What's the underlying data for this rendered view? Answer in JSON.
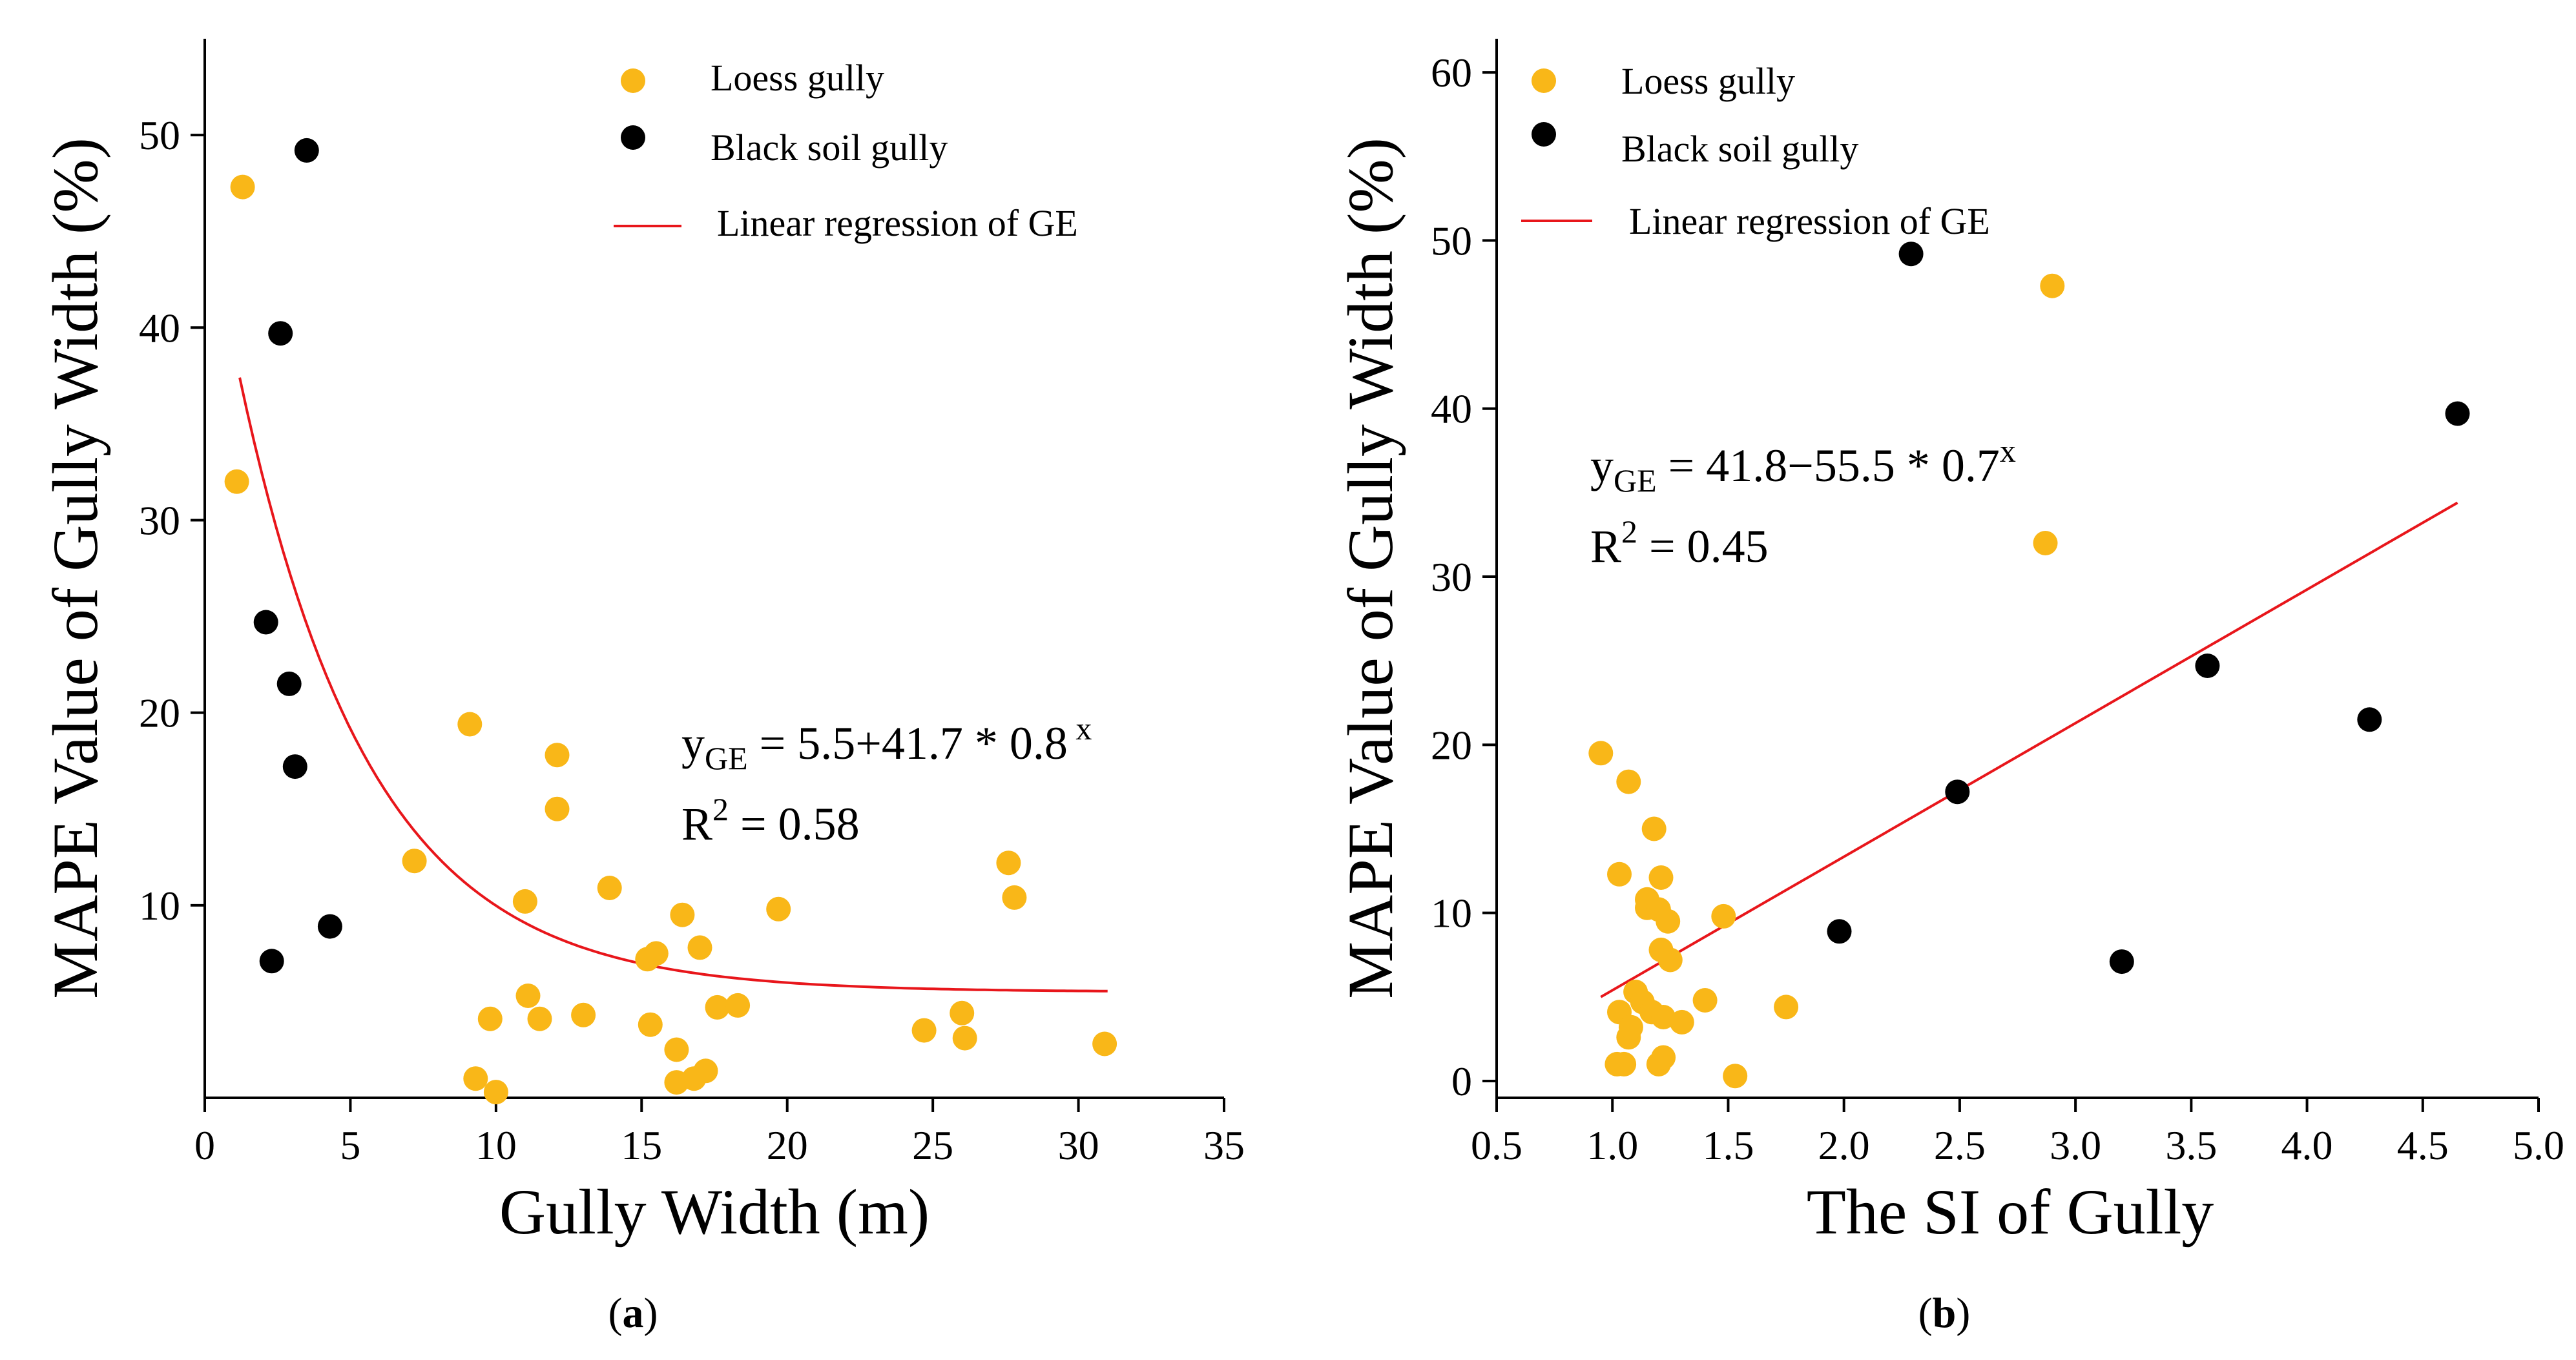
{
  "colors": {
    "loess": "#F9B718",
    "black_soil": "#000000",
    "regression": "#E8161B",
    "axis": "#000000"
  },
  "chart_data": [
    {
      "type": "scatter",
      "panel_label": "(a)",
      "panel_letter": "a",
      "xlabel": "Gully Width (m)",
      "ylabel": "MAPE Value of Gully Width (%)",
      "xlim": [
        0,
        35
      ],
      "ylim": [
        0,
        55
      ],
      "xticks": [
        0,
        5,
        10,
        15,
        20,
        25,
        30,
        35
      ],
      "yticks": [
        10,
        20,
        30,
        40,
        50
      ],
      "legend": [
        "Loess gully",
        "Black soil gully",
        "Linear regression of GE"
      ],
      "equation": {
        "lhs": "y",
        "sub": "GE",
        "rhs": " = 5.5+41.7 * 0.8",
        "sup": " x"
      },
      "r2": {
        "base": "R",
        "sup": "2",
        "value": " = 0.58"
      },
      "fit": {
        "form": "exponential",
        "a": 5.5,
        "b": 41.7,
        "c": 0.8,
        "x_range": [
          1.2,
          31
        ]
      },
      "series": [
        {
          "name": "Loess gully",
          "points": [
            [
              1.1,
              32.0
            ],
            [
              1.3,
              47.3
            ],
            [
              7.2,
              12.3
            ],
            [
              9.1,
              19.4
            ],
            [
              9.3,
              1.0
            ],
            [
              9.8,
              4.1
            ],
            [
              10.0,
              0.3
            ],
            [
              11.0,
              10.2
            ],
            [
              11.1,
              5.3
            ],
            [
              11.5,
              4.1
            ],
            [
              12.1,
              17.8
            ],
            [
              12.1,
              15.0
            ],
            [
              13.0,
              4.3
            ],
            [
              13.9,
              10.9
            ],
            [
              15.2,
              7.2
            ],
            [
              15.3,
              3.8
            ],
            [
              15.5,
              7.5
            ],
            [
              16.2,
              2.5
            ],
            [
              16.2,
              0.8
            ],
            [
              16.4,
              9.5
            ],
            [
              16.8,
              1.0
            ],
            [
              17.0,
              7.8
            ],
            [
              17.2,
              1.4
            ],
            [
              17.6,
              4.7
            ],
            [
              18.3,
              4.8
            ],
            [
              19.7,
              9.8
            ],
            [
              24.7,
              3.5
            ],
            [
              26.0,
              4.4
            ],
            [
              26.1,
              3.1
            ],
            [
              27.6,
              12.2
            ],
            [
              27.8,
              10.4
            ],
            [
              30.9,
              2.8
            ]
          ]
        },
        {
          "name": "Black soil gully",
          "points": [
            [
              2.1,
              24.7
            ],
            [
              2.3,
              7.1
            ],
            [
              2.6,
              39.7
            ],
            [
              2.9,
              21.5
            ],
            [
              3.1,
              17.2
            ],
            [
              3.5,
              49.2
            ],
            [
              4.3,
              8.9
            ]
          ]
        }
      ]
    },
    {
      "type": "scatter",
      "panel_label": "(b)",
      "panel_letter": "b",
      "xlabel": "The SI of Gully",
      "ylabel": "MAPE Value of Gully Width (%)",
      "xlim": [
        0.5,
        5.0
      ],
      "ylim": [
        -1,
        62
      ],
      "xticks": [
        0.5,
        1.0,
        1.5,
        2.0,
        2.5,
        3.0,
        3.5,
        4.0,
        4.5,
        5.0
      ],
      "xtick_labels": [
        "0.5",
        "1.0",
        "1.5",
        "2.0",
        "2.5",
        "3.0",
        "3.5",
        "4.0",
        "4.5",
        "5.0"
      ],
      "yticks": [
        0,
        10,
        20,
        30,
        40,
        50,
        60
      ],
      "legend": [
        "Loess gully",
        "Black soil gully",
        "Linear regression of GE"
      ],
      "equation": {
        "lhs": "y",
        "sub": "GE",
        "rhs": " = 41.8−55.5 * 0.7",
        "sup": "x"
      },
      "r2": {
        "base": "R",
        "sup": "2",
        "value": " = 0.45"
      },
      "fit": {
        "form": "line",
        "x_range": [
          0.95,
          4.65
        ],
        "y_range": [
          5.0,
          34.4
        ]
      },
      "series": [
        {
          "name": "Loess gully",
          "points": [
            [
              0.95,
              19.5
            ],
            [
              1.02,
              1.0
            ],
            [
              1.03,
              4.1
            ],
            [
              1.03,
              12.3
            ],
            [
              1.05,
              1.0
            ],
            [
              1.07,
              17.8
            ],
            [
              1.07,
              2.6
            ],
            [
              1.08,
              3.2
            ],
            [
              1.1,
              5.3
            ],
            [
              1.13,
              4.7
            ],
            [
              1.15,
              10.8
            ],
            [
              1.15,
              10.3
            ],
            [
              1.17,
              4.1
            ],
            [
              1.18,
              15.0
            ],
            [
              1.2,
              1.0
            ],
            [
              1.2,
              10.2
            ],
            [
              1.21,
              7.8
            ],
            [
              1.21,
              12.1
            ],
            [
              1.22,
              3.8
            ],
            [
              1.22,
              1.4
            ],
            [
              1.24,
              9.5
            ],
            [
              1.25,
              7.2
            ],
            [
              1.3,
              3.5
            ],
            [
              1.4,
              4.8
            ],
            [
              1.48,
              9.8
            ],
            [
              1.53,
              0.3
            ],
            [
              1.75,
              4.4
            ],
            [
              2.87,
              32.0
            ],
            [
              2.9,
              47.3
            ]
          ]
        },
        {
          "name": "Black soil gully",
          "points": [
            [
              1.98,
              8.9
            ],
            [
              2.29,
              49.2
            ],
            [
              2.49,
              17.2
            ],
            [
              3.2,
              7.1
            ],
            [
              3.57,
              24.7
            ],
            [
              4.27,
              21.5
            ],
            [
              4.65,
              39.7
            ]
          ]
        }
      ]
    }
  ]
}
